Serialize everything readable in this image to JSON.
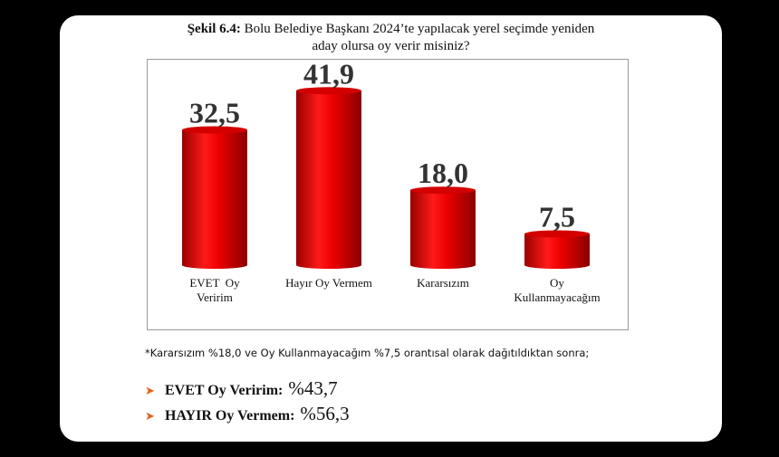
{
  "title": {
    "prefix": "Şekil 6.4:",
    "line1": "Bolu Belediye Başkanı 2024’te yapılacak yerel seçimde yeniden",
    "line2": "aday olursa oy verir misiniz?"
  },
  "chart_data": {
    "type": "bar",
    "categories": [
      [
        "EVET  Oy",
        "Veririm"
      ],
      [
        "Hayır Oy Vermem"
      ],
      [
        "Kararsızım"
      ],
      [
        "Oy",
        "Kullanmayacağım"
      ]
    ],
    "values": [
      32.5,
      41.9,
      18.0,
      7.5
    ],
    "value_labels": [
      "32,5",
      "41,9",
      "18,0",
      "7,5"
    ],
    "ylim": [
      0,
      45
    ],
    "grid": false,
    "bar_color": "#ee0000"
  },
  "note": "*Kararsızım %18,0 ve Oy Kullanmayacağım %7,5 orantısal olarak dağıtıldıktan sonra;",
  "results": [
    {
      "label": "EVET Oy Veririm:",
      "value": "%43,7"
    },
    {
      "label": "HAYIR Oy Vermem:",
      "value": "%56,3"
    }
  ],
  "accent_color": "#e8601c"
}
